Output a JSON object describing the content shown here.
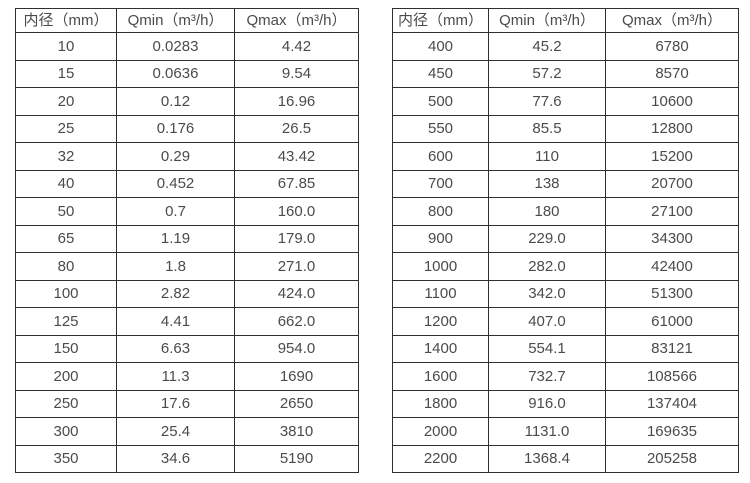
{
  "colors": {
    "background": "#ffffff",
    "border": "#2f2f2f",
    "text": "#4b4b4b"
  },
  "tables": [
    {
      "name": "flow-spec-table-left",
      "headers": [
        "内径（mm）",
        "Qmin（m³/h）",
        "Qmax（m³/h）"
      ],
      "rows": [
        [
          "10",
          "0.0283",
          "4.42"
        ],
        [
          "15",
          "0.0636",
          "9.54"
        ],
        [
          "20",
          "0.12",
          "16.96"
        ],
        [
          "25",
          "0.176",
          "26.5"
        ],
        [
          "32",
          "0.29",
          "43.42"
        ],
        [
          "40",
          "0.452",
          "67.85"
        ],
        [
          "50",
          "0.7",
          "160.0"
        ],
        [
          "65",
          "1.19",
          "179.0"
        ],
        [
          "80",
          "1.8",
          "271.0"
        ],
        [
          "100",
          "2.82",
          "424.0"
        ],
        [
          "125",
          "4.41",
          "662.0"
        ],
        [
          "150",
          "6.63",
          "954.0"
        ],
        [
          "200",
          "11.3",
          "1690"
        ],
        [
          "250",
          "17.6",
          "2650"
        ],
        [
          "300",
          "25.4",
          "3810"
        ],
        [
          "350",
          "34.6",
          "5190"
        ]
      ]
    },
    {
      "name": "flow-spec-table-right",
      "headers": [
        "内径（mm）",
        "Qmin（m³/h）",
        "Qmax（m³/h）"
      ],
      "rows": [
        [
          "400",
          "45.2",
          "6780"
        ],
        [
          "450",
          "57.2",
          "8570"
        ],
        [
          "500",
          "77.6",
          "10600"
        ],
        [
          "550",
          "85.5",
          "12800"
        ],
        [
          "600",
          "110",
          "15200"
        ],
        [
          "700",
          "138",
          "20700"
        ],
        [
          "800",
          "180",
          "27100"
        ],
        [
          "900",
          "229.0",
          "34300"
        ],
        [
          "1000",
          "282.0",
          "42400"
        ],
        [
          "1100",
          "342.0",
          "51300"
        ],
        [
          "1200",
          "407.0",
          "61000"
        ],
        [
          "1400",
          "554.1",
          "83121"
        ],
        [
          "1600",
          "732.7",
          "108566"
        ],
        [
          "1800",
          "916.0",
          "137404"
        ],
        [
          "2000",
          "1131.0",
          "169635"
        ],
        [
          "2200",
          "1368.4",
          "205258"
        ]
      ]
    }
  ]
}
